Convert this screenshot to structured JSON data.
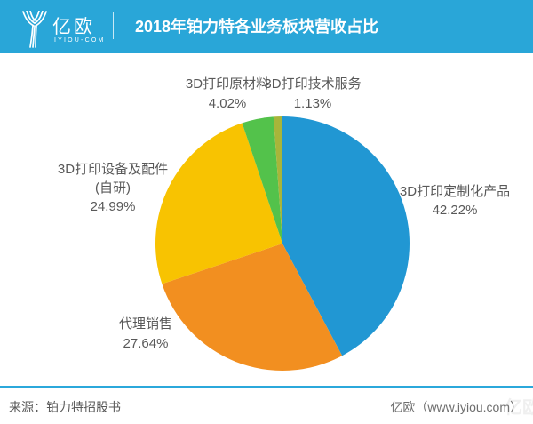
{
  "header": {
    "logo_text": "亿欧",
    "logo_subtext": "IYIOU-COM",
    "title": "2018年铂力特各业务板块营收占比",
    "bg_color": "#29A6D8"
  },
  "chart_data": {
    "type": "pie",
    "title": "2018年铂力特各业务板块营收占比",
    "unit": "%",
    "start_angle_deg": 0,
    "direction": "clockwise",
    "label_position": "outside",
    "legend": "none",
    "segments": [
      {
        "label": "3D打印定制化产品",
        "value": 42.22,
        "pct_label": "42.22%",
        "color": "#2197D3"
      },
      {
        "label": "代理销售",
        "value": 27.64,
        "pct_label": "27.64%",
        "color": "#F28F20"
      },
      {
        "label": "3D打印设备及配件(自研)",
        "label_lines": [
          "3D打印设备及配件",
          "(自研)"
        ],
        "value": 24.99,
        "pct_label": "24.99%",
        "color": "#F8C301"
      },
      {
        "label": "3D打印原材料",
        "value": 4.02,
        "pct_label": "4.02%",
        "color": "#53C24B"
      },
      {
        "label": "3D打印技术服务",
        "value": 1.13,
        "pct_label": "1.13%",
        "color": "#A8B53A"
      }
    ]
  },
  "footer": {
    "source": "来源：铂力特招股书",
    "credit": "亿欧（www.iyiou.com）"
  }
}
